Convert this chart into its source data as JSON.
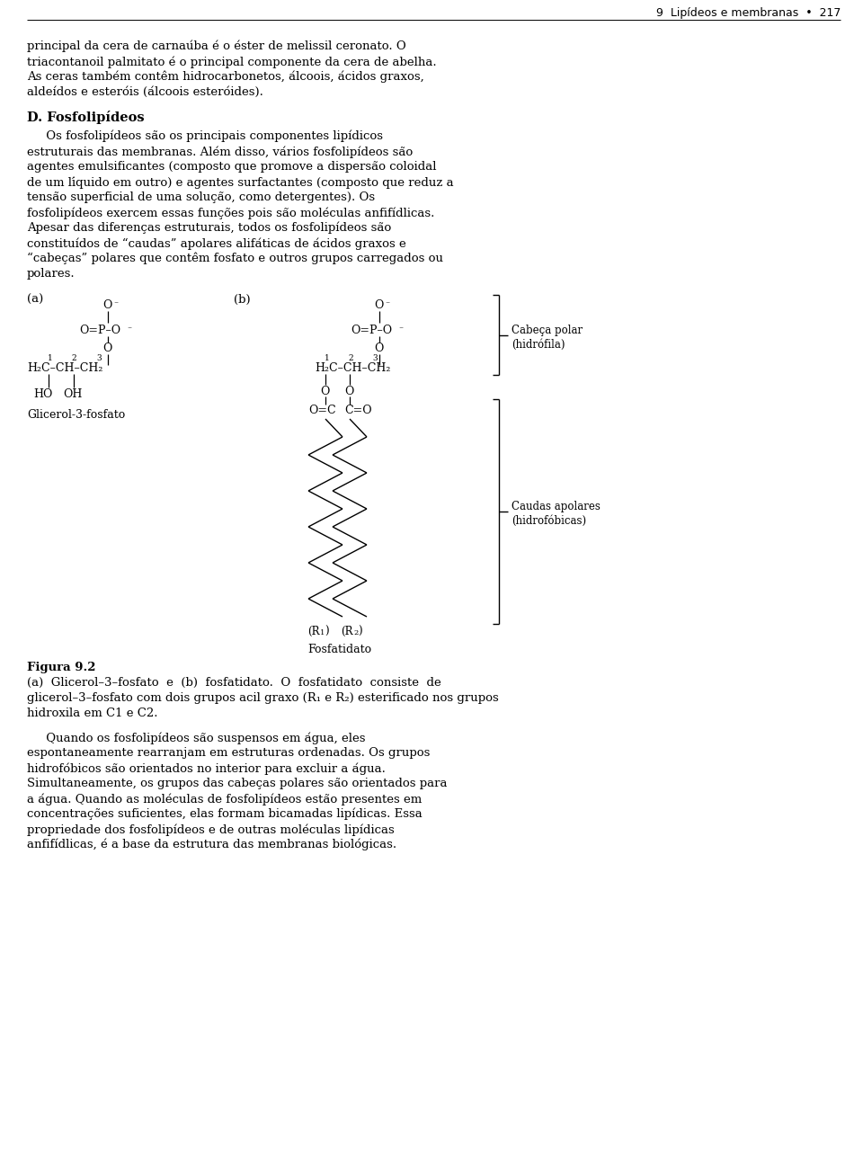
{
  "bg_color": "#ffffff",
  "header_text": "9  Lipídeos e membranas  •  217",
  "para1_lines": [
    "principal da cera de carnaúba é o éster de melissil ceronato. O",
    "triacontanoil palmitato é o principal componente da cera de abelha.",
    "As ceras também contêm hidrocarbonetos, álcoois, ácidos graxos,",
    "aldeídos e esteróis (álcoois esteróides)."
  ],
  "section_title": "D. Fosfolipídeos",
  "para2_lines": [
    "     Os fosfolipídeos são os principais componentes lipídicos",
    "estruturais das membranas. Além disso, vários fosfolipídeos são",
    "agentes emulsificantes (composto que promove a dispersão coloidal",
    "de um líquido em outro) e agentes surfactantes (composto que reduz a",
    "tensão superficial de uma solução, como detergentes). Os",
    "fosfolipídeos exercem essas funções pois são moléculas anfifídlicas.",
    "Apesar das diferenças estruturais, todos os fosfolipídeos são",
    "constituídos de “caudas” apolares alifáticas de ácidos graxos e",
    "“cabeças” polares que contêm fosfato e outros grupos carregados ou",
    "polares."
  ],
  "para3_lines": [
    "     Quando os fosfolipídeos são suspensos em água, eles",
    "espontaneamente rearranjam em estruturas ordenadas. Os grupos",
    "hidrofóbicos são orientados no interior para excluir a água.",
    "Simultaneamente, os grupos das cabeças polares são orientados para",
    "a água. Quando as moléculas de fosfolipídeos estão presentes em",
    "concentrações suficientes, elas formam bicamadas lipídicas. Essa",
    "propriedade dos fosfolipídeos e de outras moléculas lipídicas",
    "anfifídlicas, é a base da estrutura das membranas biológicas."
  ],
  "fig_label": "Figura 9.2",
  "fig_caption_lines": [
    "(a)  Glicerol–3–fosfato  e  (b)  fosfatidato.  O  fosfatidato  consiste  de",
    "glicerol–3–fosfato com dois grupos acil graxo (R₁ e R₂) esterificado nos grupos",
    "hidroxila em C1 e C2."
  ]
}
